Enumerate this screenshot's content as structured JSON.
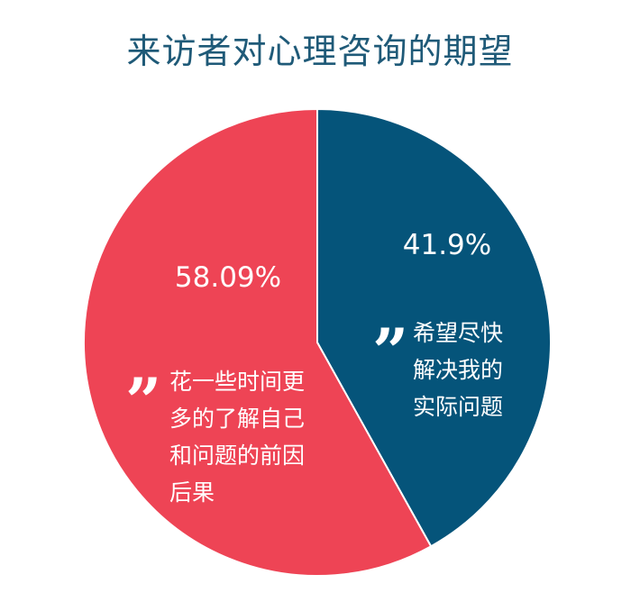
{
  "chart_data": {
    "type": "pie",
    "title": "来访者对心理咨询的期望",
    "slices": [
      {
        "value": 41.9,
        "label": "41.9%",
        "color": "#05547a",
        "description": [
          "希望尽快",
          "解决我的",
          "实际问题"
        ]
      },
      {
        "value": 58.09,
        "label": "58.09%",
        "color": "#ee4455",
        "description": [
          "花一些时间更",
          "多的了解自己",
          "和问题的前因",
          "后果"
        ]
      }
    ]
  }
}
